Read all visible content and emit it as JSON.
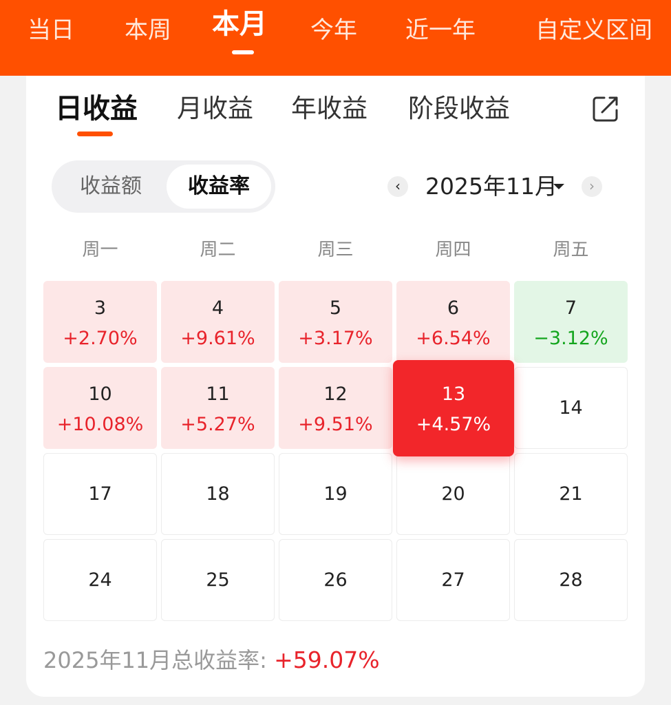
{
  "period_tabs": [
    "当日",
    "本周",
    "本月",
    "今年",
    "近一年",
    "自定义区间"
  ],
  "sub_tabs": [
    "日收益",
    "月收益",
    "年收益",
    "阶段收益"
  ],
  "toggle": {
    "left": "收益额",
    "right": "收益率"
  },
  "month": {
    "label": "2025年11月",
    "prev_icon": "chevron-left-icon",
    "next_icon": "chevron-right-icon"
  },
  "weekdays": [
    "周一",
    "周二",
    "周三",
    "周四",
    "周五"
  ],
  "days": [
    {
      "day": "3",
      "value": "+2.70%",
      "status": "pos"
    },
    {
      "day": "4",
      "value": "+9.61%",
      "status": "pos"
    },
    {
      "day": "5",
      "value": "+3.17%",
      "status": "pos"
    },
    {
      "day": "6",
      "value": "+6.54%",
      "status": "pos"
    },
    {
      "day": "7",
      "value": "−3.12%",
      "status": "neg"
    },
    {
      "day": "10",
      "value": "+10.08%",
      "status": "pos"
    },
    {
      "day": "11",
      "value": "+5.27%",
      "status": "pos"
    },
    {
      "day": "12",
      "value": "+9.51%",
      "status": "pos"
    },
    {
      "day": "13",
      "value": "+4.57%",
      "status": "selected"
    },
    {
      "day": "14",
      "value": "",
      "status": "empty"
    },
    {
      "day": "17",
      "value": "",
      "status": "empty"
    },
    {
      "day": "18",
      "value": "",
      "status": "empty"
    },
    {
      "day": "19",
      "value": "",
      "status": "empty"
    },
    {
      "day": "20",
      "value": "",
      "status": "empty"
    },
    {
      "day": "21",
      "value": "",
      "status": "empty"
    },
    {
      "day": "24",
      "value": "",
      "status": "empty"
    },
    {
      "day": "25",
      "value": "",
      "status": "empty"
    },
    {
      "day": "26",
      "value": "",
      "status": "empty"
    },
    {
      "day": "27",
      "value": "",
      "status": "empty"
    },
    {
      "day": "28",
      "value": "",
      "status": "empty"
    }
  ],
  "summary": {
    "label": "2025年11月总收益率: ",
    "value": "+59.07%"
  },
  "colors": {
    "brand": "#ff5000",
    "positive": "#e8232b",
    "negative": "#14a51e",
    "positive_bg": "#fde7e7",
    "negative_bg": "#e3f6e6",
    "selected_bg": "#f2262a"
  }
}
